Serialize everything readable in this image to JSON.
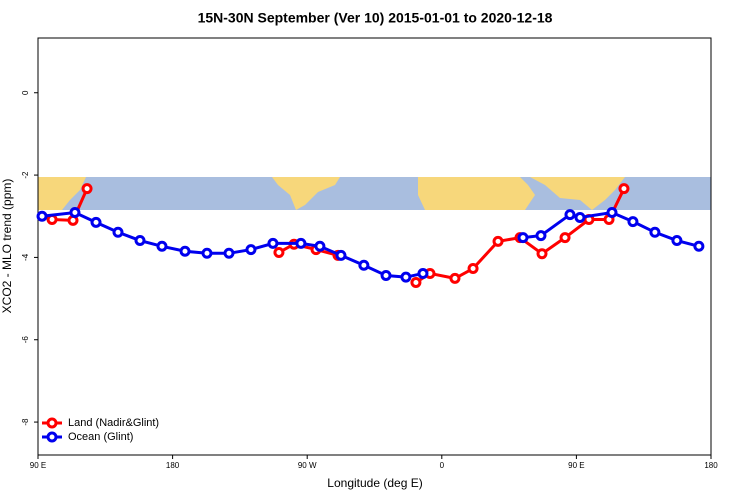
{
  "chart_data": {
    "type": "line",
    "title": "15N-30N September (Ver 10)   2015-01-01 to 2020-12-18",
    "x_label": "Longitude (deg E)",
    "y_label": "XCO2 - MLO trend (ppm)",
    "xlim": [
      90,
      540
    ],
    "xticks": [
      {
        "value": 90,
        "label": "90 E"
      },
      {
        "value": 180,
        "label": "180"
      },
      {
        "value": 270,
        "label": "90 W"
      },
      {
        "value": 360,
        "label": "0"
      },
      {
        "value": 450,
        "label": "90 E"
      },
      {
        "value": 540,
        "label": "180"
      }
    ],
    "ylim": [
      -8.8,
      1.33
    ],
    "yticks": [
      0,
      -2,
      -4,
      -6,
      -8
    ],
    "legend": "bottom-left",
    "series": [
      {
        "name": "Land (Nadir&Glint)",
        "color": "#ff0000",
        "x": [
          99.4,
          113.4,
          122.8,
          null,
          251.1,
          261.2,
          275.9,
          290.6,
          null,
          342.7,
          352.1,
          368.8,
          380.9,
          397.6,
          412.3,
          427.0,
          442.4,
          458.4,
          471.8,
          481.8
        ],
        "values": [
          -3.08,
          -3.1,
          -2.33,
          null,
          -3.88,
          -3.68,
          -3.81,
          -3.95,
          null,
          -4.61,
          -4.39,
          -4.51,
          -4.27,
          -3.61,
          -3.52,
          -3.91,
          -3.52,
          -3.08,
          -3.08,
          -2.33
        ]
      },
      {
        "name": "Ocean (Glint)",
        "color": "#0000ee",
        "x": [
          92.7,
          114.7,
          128.8,
          143.5,
          158.2,
          172.9,
          188.3,
          203.0,
          217.7,
          232.4,
          247.1,
          265.8,
          278.5,
          292.6,
          307.9,
          322.7,
          336.0,
          347.4,
          null,
          414.3,
          426.3,
          445.7,
          452.4,
          473.8,
          487.8,
          502.5,
          517.2,
          531.9
        ],
        "values": [
          -3.0,
          -2.91,
          -3.15,
          -3.39,
          -3.59,
          -3.73,
          -3.85,
          -3.9,
          -3.9,
          -3.81,
          -3.66,
          -3.66,
          -3.73,
          -3.95,
          -4.19,
          -4.44,
          -4.48,
          -4.39,
          null,
          -3.52,
          -3.47,
          -2.96,
          -3.03,
          -2.91,
          -3.13,
          -3.39,
          -3.59,
          -3.73
        ]
      }
    ]
  }
}
